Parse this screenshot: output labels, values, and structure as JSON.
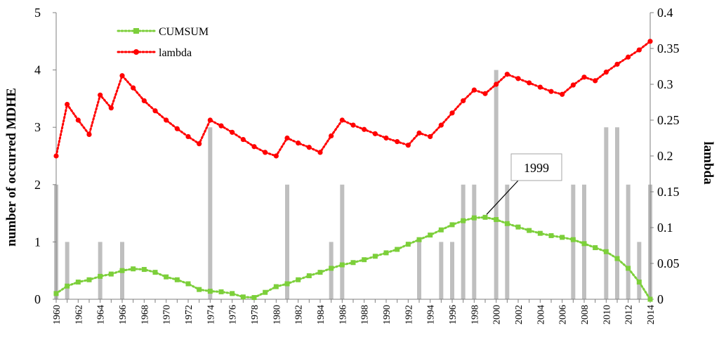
{
  "chart_data": {
    "type": "bar+line",
    "title": "",
    "xlabel": "",
    "ylabel_left": "number of occurred MDHE",
    "ylabel_right": "lambda",
    "ylim_left": [
      0,
      5
    ],
    "ylim_right": [
      0,
      0.4
    ],
    "yticks_left": [
      "0",
      "1",
      "2",
      "3",
      "4",
      "5"
    ],
    "yticks_right": [
      "0",
      "0.05",
      "0.1",
      "0.15",
      "0.2",
      "0.25",
      "0.3",
      "0.35",
      "0.4"
    ],
    "xticks": [
      "1960",
      "1962",
      "1964",
      "1966",
      "1968",
      "1970",
      "1972",
      "1974",
      "1976",
      "1978",
      "1980",
      "1982",
      "1984",
      "1986",
      "1988",
      "1990",
      "1992",
      "1994",
      "1996",
      "1998",
      "2000",
      "2002",
      "2004",
      "2006",
      "2008",
      "2010",
      "2012",
      "2014"
    ],
    "x_range": [
      1960,
      2014
    ],
    "bars": {
      "name": "occurred MDHE",
      "color": "#bfbfbf",
      "years": [
        1960,
        1961,
        1964,
        1966,
        1974,
        1981,
        1985,
        1986,
        1993,
        1995,
        1996,
        1997,
        1998,
        2000,
        2001,
        2007,
        2008,
        2010,
        2011,
        2012,
        2013,
        2014
      ],
      "values": [
        2,
        1,
        1,
        1,
        3,
        2,
        1,
        2,
        1,
        1,
        1,
        2,
        2,
        4,
        2,
        2,
        2,
        3,
        3,
        2,
        1,
        2
      ]
    },
    "series": [
      {
        "name": "CUMSUM",
        "axis": "left",
        "color": "#7ccf3a",
        "marker": "square",
        "x": [
          1960,
          1961,
          1962,
          1963,
          1964,
          1965,
          1966,
          1967,
          1968,
          1969,
          1970,
          1971,
          1972,
          1973,
          1974,
          1975,
          1976,
          1977,
          1978,
          1979,
          1980,
          1981,
          1982,
          1983,
          1984,
          1985,
          1986,
          1987,
          1988,
          1989,
          1990,
          1991,
          1992,
          1993,
          1994,
          1995,
          1996,
          1997,
          1998,
          1999,
          2000,
          2001,
          2002,
          2003,
          2004,
          2005,
          2006,
          2007,
          2008,
          2009,
          2010,
          2011,
          2012,
          2013,
          2014
        ],
        "values": [
          0.1,
          0.23,
          0.3,
          0.34,
          0.4,
          0.44,
          0.5,
          0.53,
          0.52,
          0.47,
          0.39,
          0.34,
          0.27,
          0.17,
          0.14,
          0.13,
          0.1,
          0.04,
          0.03,
          0.12,
          0.22,
          0.27,
          0.34,
          0.41,
          0.47,
          0.54,
          0.6,
          0.64,
          0.69,
          0.75,
          0.81,
          0.87,
          0.96,
          1.04,
          1.12,
          1.21,
          1.3,
          1.37,
          1.42,
          1.43,
          1.39,
          1.32,
          1.26,
          1.2,
          1.15,
          1.11,
          1.08,
          1.04,
          0.97,
          0.9,
          0.83,
          0.71,
          0.54,
          0.3,
          0.0
        ]
      },
      {
        "name": "lambda",
        "axis": "right",
        "color": "#ff0000",
        "marker": "circle",
        "x": [
          1960,
          1961,
          1962,
          1963,
          1964,
          1965,
          1966,
          1967,
          1968,
          1969,
          1970,
          1971,
          1972,
          1973,
          1974,
          1975,
          1976,
          1977,
          1978,
          1979,
          1980,
          1981,
          1982,
          1983,
          1984,
          1985,
          1986,
          1987,
          1988,
          1989,
          1990,
          1991,
          1992,
          1993,
          1994,
          1995,
          1996,
          1997,
          1998,
          1999,
          2000,
          2001,
          2002,
          2003,
          2004,
          2005,
          2006,
          2007,
          2008,
          2009,
          2010,
          2011,
          2012,
          2013,
          2014
        ],
        "values": [
          0.2,
          0.272,
          0.25,
          0.23,
          0.285,
          0.267,
          0.312,
          0.295,
          0.277,
          0.263,
          0.25,
          0.238,
          0.227,
          0.217,
          0.25,
          0.242,
          0.233,
          0.223,
          0.213,
          0.205,
          0.2,
          0.225,
          0.218,
          0.212,
          0.205,
          0.228,
          0.25,
          0.243,
          0.237,
          0.231,
          0.225,
          0.22,
          0.215,
          0.232,
          0.227,
          0.243,
          0.26,
          0.277,
          0.292,
          0.287,
          0.3,
          0.314,
          0.308,
          0.302,
          0.296,
          0.29,
          0.286,
          0.299,
          0.31,
          0.305,
          0.317,
          0.328,
          0.338,
          0.348,
          0.36
        ]
      }
    ],
    "annotations": [
      {
        "text": "1999",
        "x": 1999,
        "y_cumsum": 1.43
      }
    ],
    "legend_position": "top-left",
    "grid": false
  }
}
